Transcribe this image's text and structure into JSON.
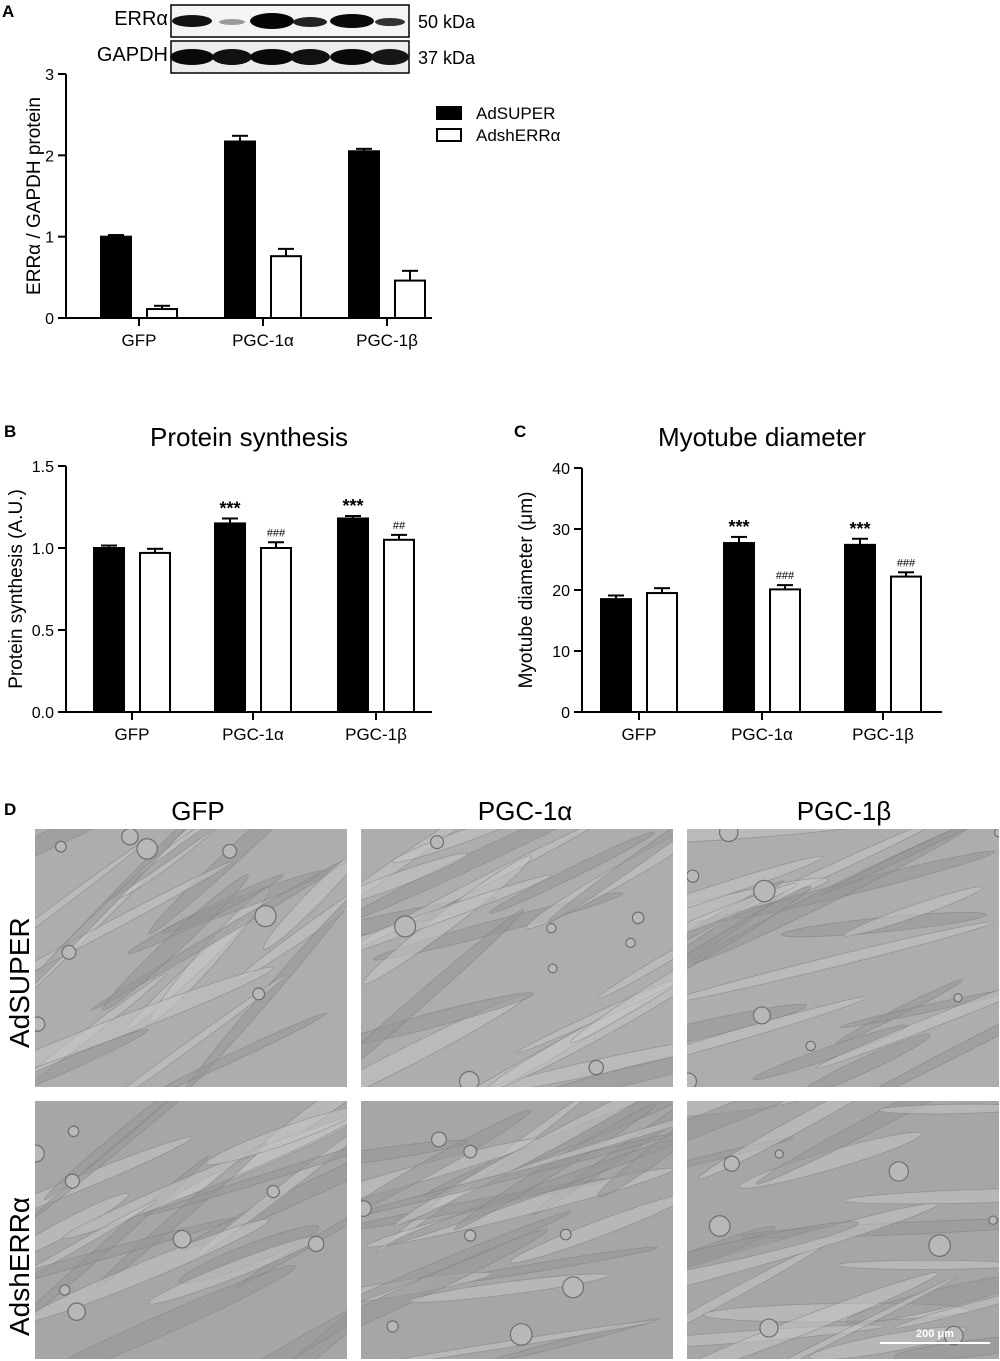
{
  "panels": {
    "a": "A",
    "b": "B",
    "c": "C",
    "d": "D"
  },
  "blot": {
    "top_label": "ERRα",
    "bottom_label": "GAPDH",
    "top_size": "50 kDa",
    "bottom_size": "37 kDa"
  },
  "legend": {
    "series1": "AdSUPER",
    "series2": "AdshERRα"
  },
  "chart_data": [
    {
      "type": "bar",
      "panel": "A",
      "title": "",
      "xlabel": "",
      "ylabel": "ERRα / GAPDH protein",
      "ylim": [
        0,
        3
      ],
      "yticks": [
        "0",
        "1",
        "2",
        "3"
      ],
      "categories": [
        "GFP",
        "PGC-1α",
        "PGC-1β"
      ],
      "series": [
        {
          "name": "AdSUPER",
          "color": "#000000",
          "values": [
            1.0,
            2.17,
            2.05
          ],
          "errors": [
            0.02,
            0.07,
            0.03
          ]
        },
        {
          "name": "AdshERRα",
          "color": "#ffffff",
          "values": [
            0.11,
            0.76,
            0.46
          ],
          "errors": [
            0.04,
            0.09,
            0.12
          ]
        }
      ],
      "annotations": [
        [
          "",
          "",
          ""
        ],
        [
          "",
          "",
          ""
        ]
      ]
    },
    {
      "type": "bar",
      "panel": "B",
      "title": "Protein synthesis",
      "xlabel": "",
      "ylabel": "Protein synthesis (A.U.)",
      "ylim": [
        0,
        1.5
      ],
      "yticks": [
        "0.0",
        "0.5",
        "1.0",
        "1.5"
      ],
      "categories": [
        "GFP",
        "PGC-1α",
        "PGC-1β"
      ],
      "series": [
        {
          "name": "AdSUPER",
          "color": "#000000",
          "values": [
            1.0,
            1.15,
            1.18
          ],
          "errors": [
            0.015,
            0.03,
            0.015
          ]
        },
        {
          "name": "AdshERRα",
          "color": "#ffffff",
          "values": [
            0.97,
            1.0,
            1.05
          ],
          "errors": [
            0.025,
            0.035,
            0.03
          ]
        }
      ],
      "annotations": [
        [
          "",
          "***",
          "***"
        ],
        [
          "",
          "###",
          "##"
        ]
      ]
    },
    {
      "type": "bar",
      "panel": "C",
      "title": "Myotube diameter",
      "xlabel": "",
      "ylabel": "Myotube diameter (μm)",
      "ylim": [
        0,
        40
      ],
      "yticks": [
        "0",
        "10",
        "20",
        "30",
        "40"
      ],
      "categories": [
        "GFP",
        "PGC-1α",
        "PGC-1β"
      ],
      "series": [
        {
          "name": "AdSUPER",
          "color": "#000000",
          "values": [
            18.5,
            27.7,
            27.4
          ],
          "errors": [
            0.6,
            1.0,
            1.0
          ]
        },
        {
          "name": "AdshERRα",
          "color": "#ffffff",
          "values": [
            19.5,
            20.1,
            22.2
          ],
          "errors": [
            0.8,
            0.7,
            0.7
          ]
        }
      ],
      "annotations": [
        [
          "",
          "***",
          "***"
        ],
        [
          "",
          "###",
          "###"
        ]
      ]
    }
  ],
  "micrographs": {
    "columns": [
      "GFP",
      "PGC-1α",
      "PGC-1β"
    ],
    "rows": [
      "AdSUPER",
      "AdshERRα"
    ],
    "scale_bar": "200 μm"
  }
}
